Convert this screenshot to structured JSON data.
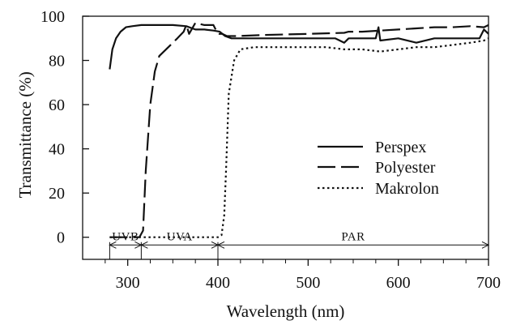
{
  "chart_data": {
    "type": "line",
    "title": "",
    "xlabel": "Wavelength (nm)",
    "ylabel": "Transmittance (%)",
    "xlim": [
      250,
      700
    ],
    "ylim": [
      -10,
      100
    ],
    "x_ticks": [
      300,
      400,
      500,
      600,
      700
    ],
    "y_ticks": [
      0,
      20,
      40,
      60,
      80,
      100
    ],
    "legend_position": "right",
    "grid": false,
    "series": [
      {
        "name": "Perspex",
        "style": "solid",
        "x": [
          280,
          283,
          287,
          292,
          298,
          305,
          315,
          330,
          350,
          365,
          375,
          385,
          395,
          402,
          408,
          415,
          430,
          460,
          500,
          530,
          540,
          545,
          560,
          575,
          578,
          580,
          600,
          620,
          640,
          660,
          680,
          690,
          695,
          700
        ],
        "y": [
          76,
          85,
          90,
          93,
          95,
          95.5,
          96,
          96,
          96,
          95.5,
          94,
          94,
          93.5,
          93,
          91,
          90,
          90,
          90,
          90,
          90,
          88,
          90,
          90,
          90,
          95,
          89,
          90,
          88,
          90,
          90,
          90,
          90,
          94,
          92
        ]
      },
      {
        "name": "Polyester",
        "style": "dashed",
        "x": [
          280,
          300,
          310,
          313,
          317,
          320,
          325,
          330,
          335,
          345,
          355,
          362,
          365,
          368,
          375,
          385,
          395,
          400,
          405,
          410,
          420,
          450,
          500,
          540,
          545,
          560,
          580,
          600,
          620,
          640,
          660,
          680,
          695,
          700
        ],
        "y": [
          0,
          0,
          0,
          0,
          3,
          30,
          60,
          75,
          82,
          86,
          90,
          93,
          96,
          92,
          97,
          96,
          96,
          92,
          92,
          91,
          91,
          91.5,
          92,
          92.5,
          93,
          93,
          93.5,
          94,
          94.5,
          95,
          95,
          95.5,
          95,
          96
        ]
      },
      {
        "name": "Makrolon",
        "style": "dotted",
        "x": [
          280,
          300,
          350,
          400,
          404,
          407,
          409,
          412,
          418,
          425,
          440,
          480,
          520,
          540,
          560,
          580,
          600,
          620,
          640,
          660,
          680,
          695,
          700
        ],
        "y": [
          0,
          0,
          0,
          0,
          1,
          10,
          30,
          65,
          80,
          85,
          86,
          86,
          86,
          85,
          85,
          84,
          85,
          86,
          86,
          87,
          88,
          89,
          90
        ]
      }
    ],
    "bands": [
      {
        "label": "UVB",
        "from": 280,
        "to": 315
      },
      {
        "label": "UVA",
        "from": 315,
        "to": 400
      },
      {
        "label": "PAR",
        "from": 400,
        "to": 700
      }
    ]
  }
}
